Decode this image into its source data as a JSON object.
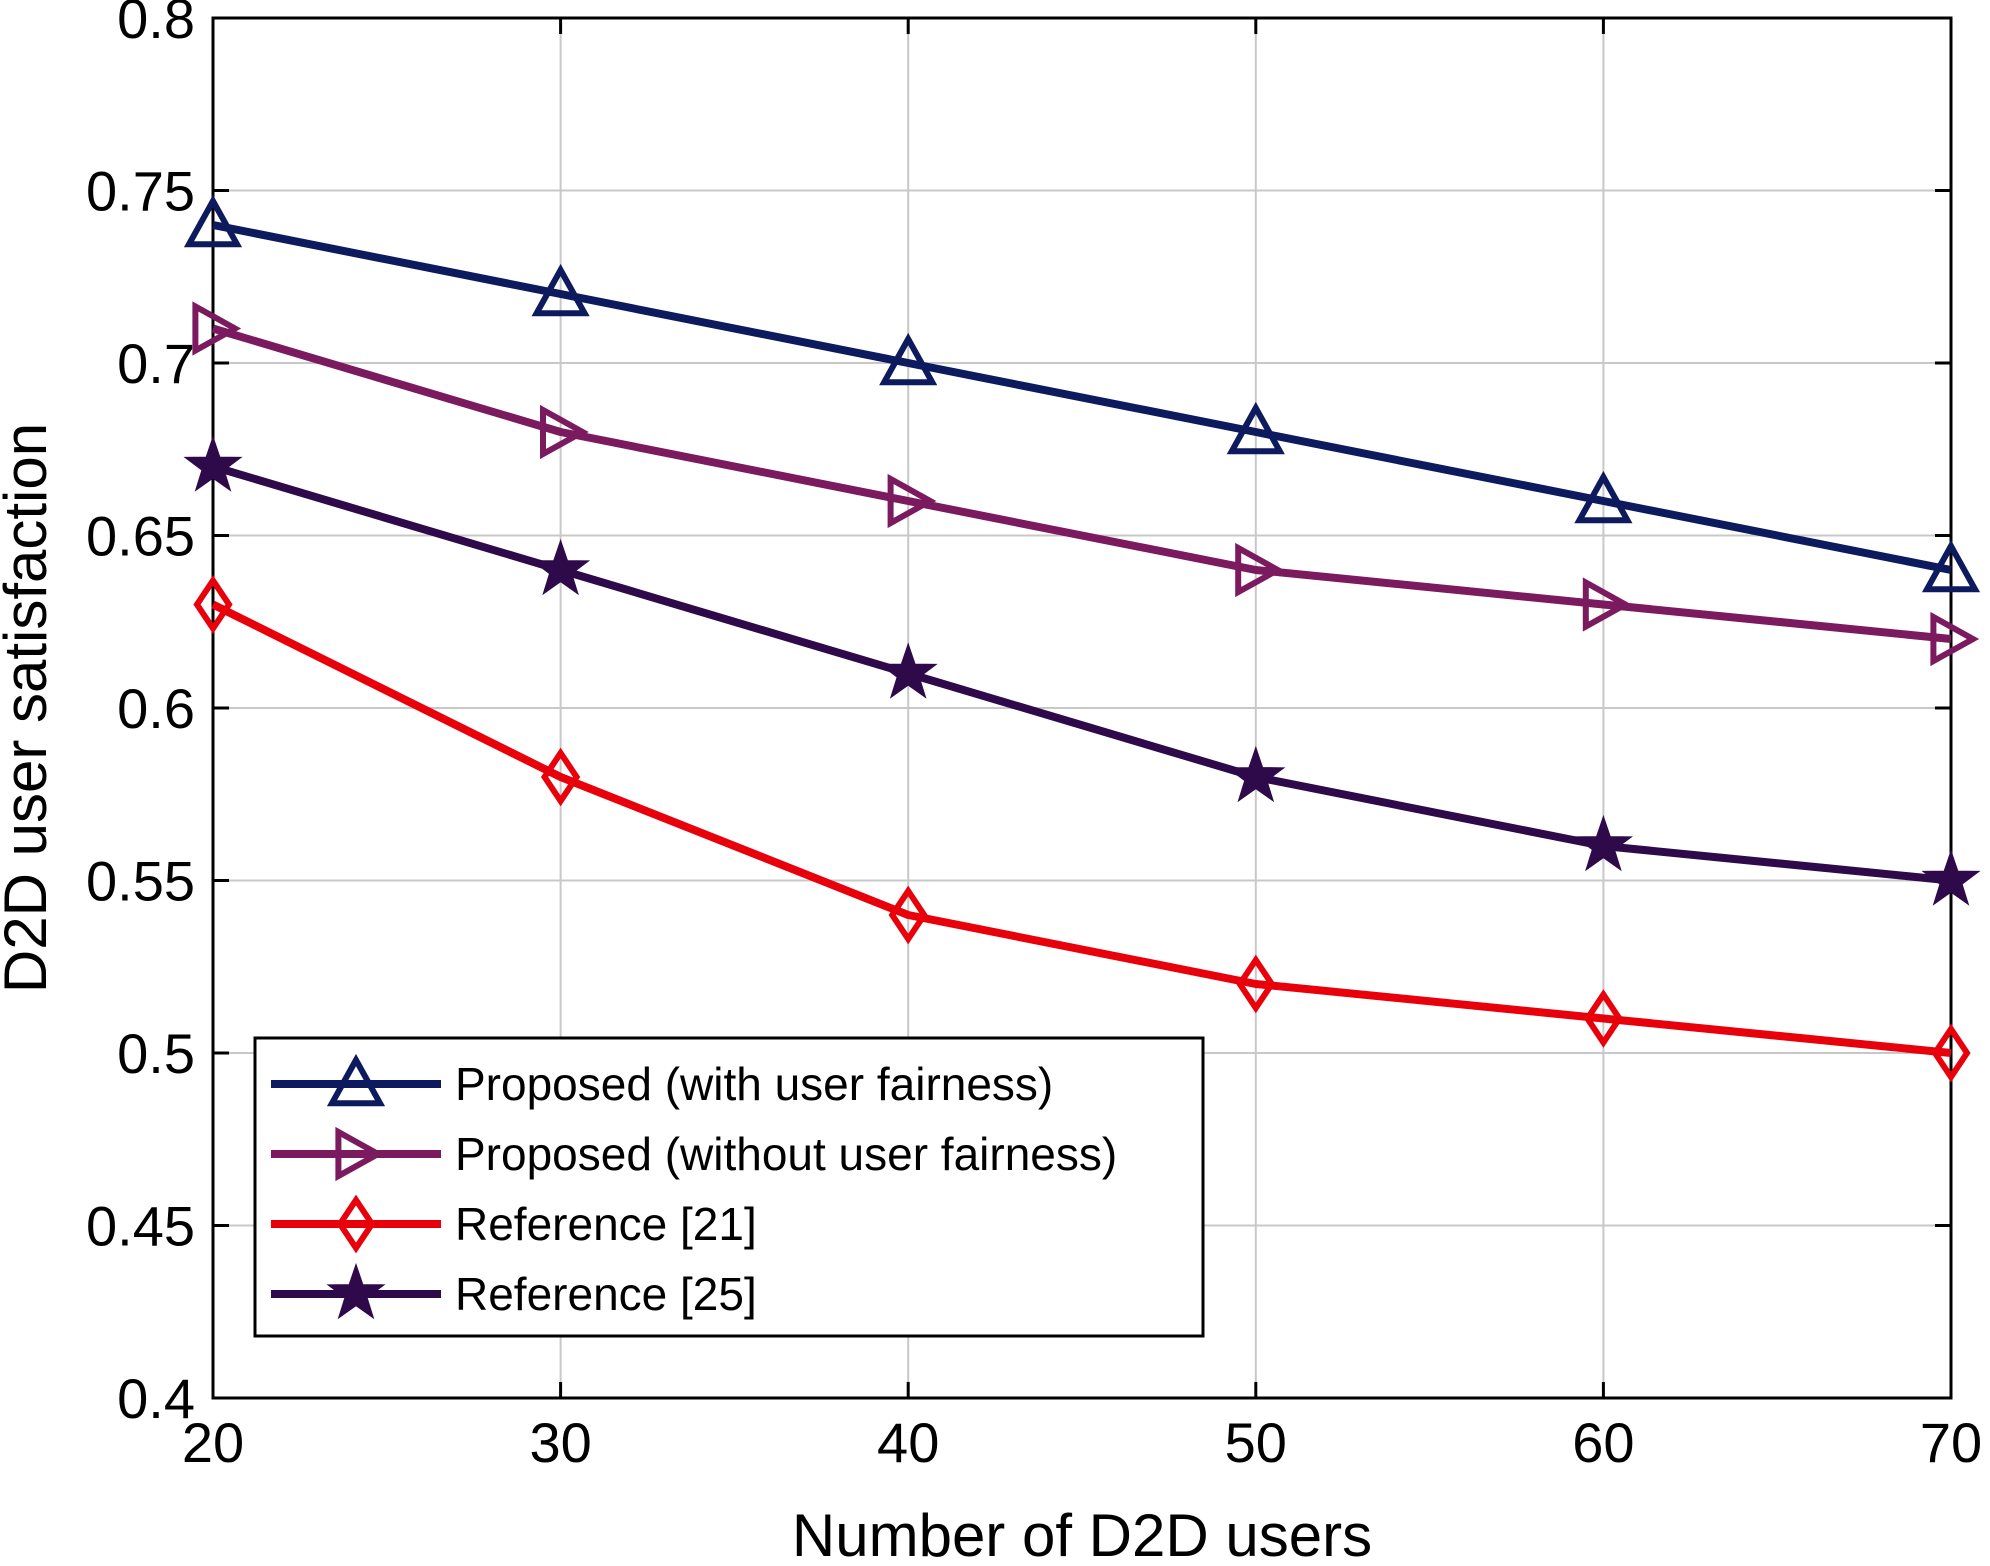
{
  "chart_data": {
    "type": "line",
    "xlabel": "Number of D2D users",
    "ylabel": "D2D user satisfaction",
    "x": [
      20,
      30,
      40,
      50,
      60,
      70
    ],
    "xlim": [
      20,
      70
    ],
    "ylim": [
      0.4,
      0.8
    ],
    "xticks": [
      "20",
      "30",
      "40",
      "50",
      "60",
      "70"
    ],
    "yticks": [
      "0.4",
      "0.45",
      "0.5",
      "0.55",
      "0.6",
      "0.65",
      "0.7",
      "0.75",
      "0.8"
    ],
    "grid": true,
    "legend_position": "bottom-left",
    "series": [
      {
        "name": "Proposed (with user fairness)",
        "values": [
          0.74,
          0.72,
          0.7,
          0.68,
          0.66,
          0.64
        ],
        "color": "#0d1b5e",
        "marker": "triangle-up"
      },
      {
        "name": "Proposed (without user fairness)",
        "values": [
          0.71,
          0.68,
          0.66,
          0.64,
          0.63,
          0.62
        ],
        "color": "#7b1a5e",
        "marker": "triangle-right"
      },
      {
        "name": "Reference [21]",
        "values": [
          0.63,
          0.58,
          0.54,
          0.52,
          0.51,
          0.5
        ],
        "color": "#e8000b",
        "marker": "diamond"
      },
      {
        "name": "Reference [25]",
        "values": [
          0.67,
          0.64,
          0.61,
          0.58,
          0.56,
          0.55
        ],
        "color": "#2e0a4a",
        "marker": "star"
      }
    ]
  }
}
